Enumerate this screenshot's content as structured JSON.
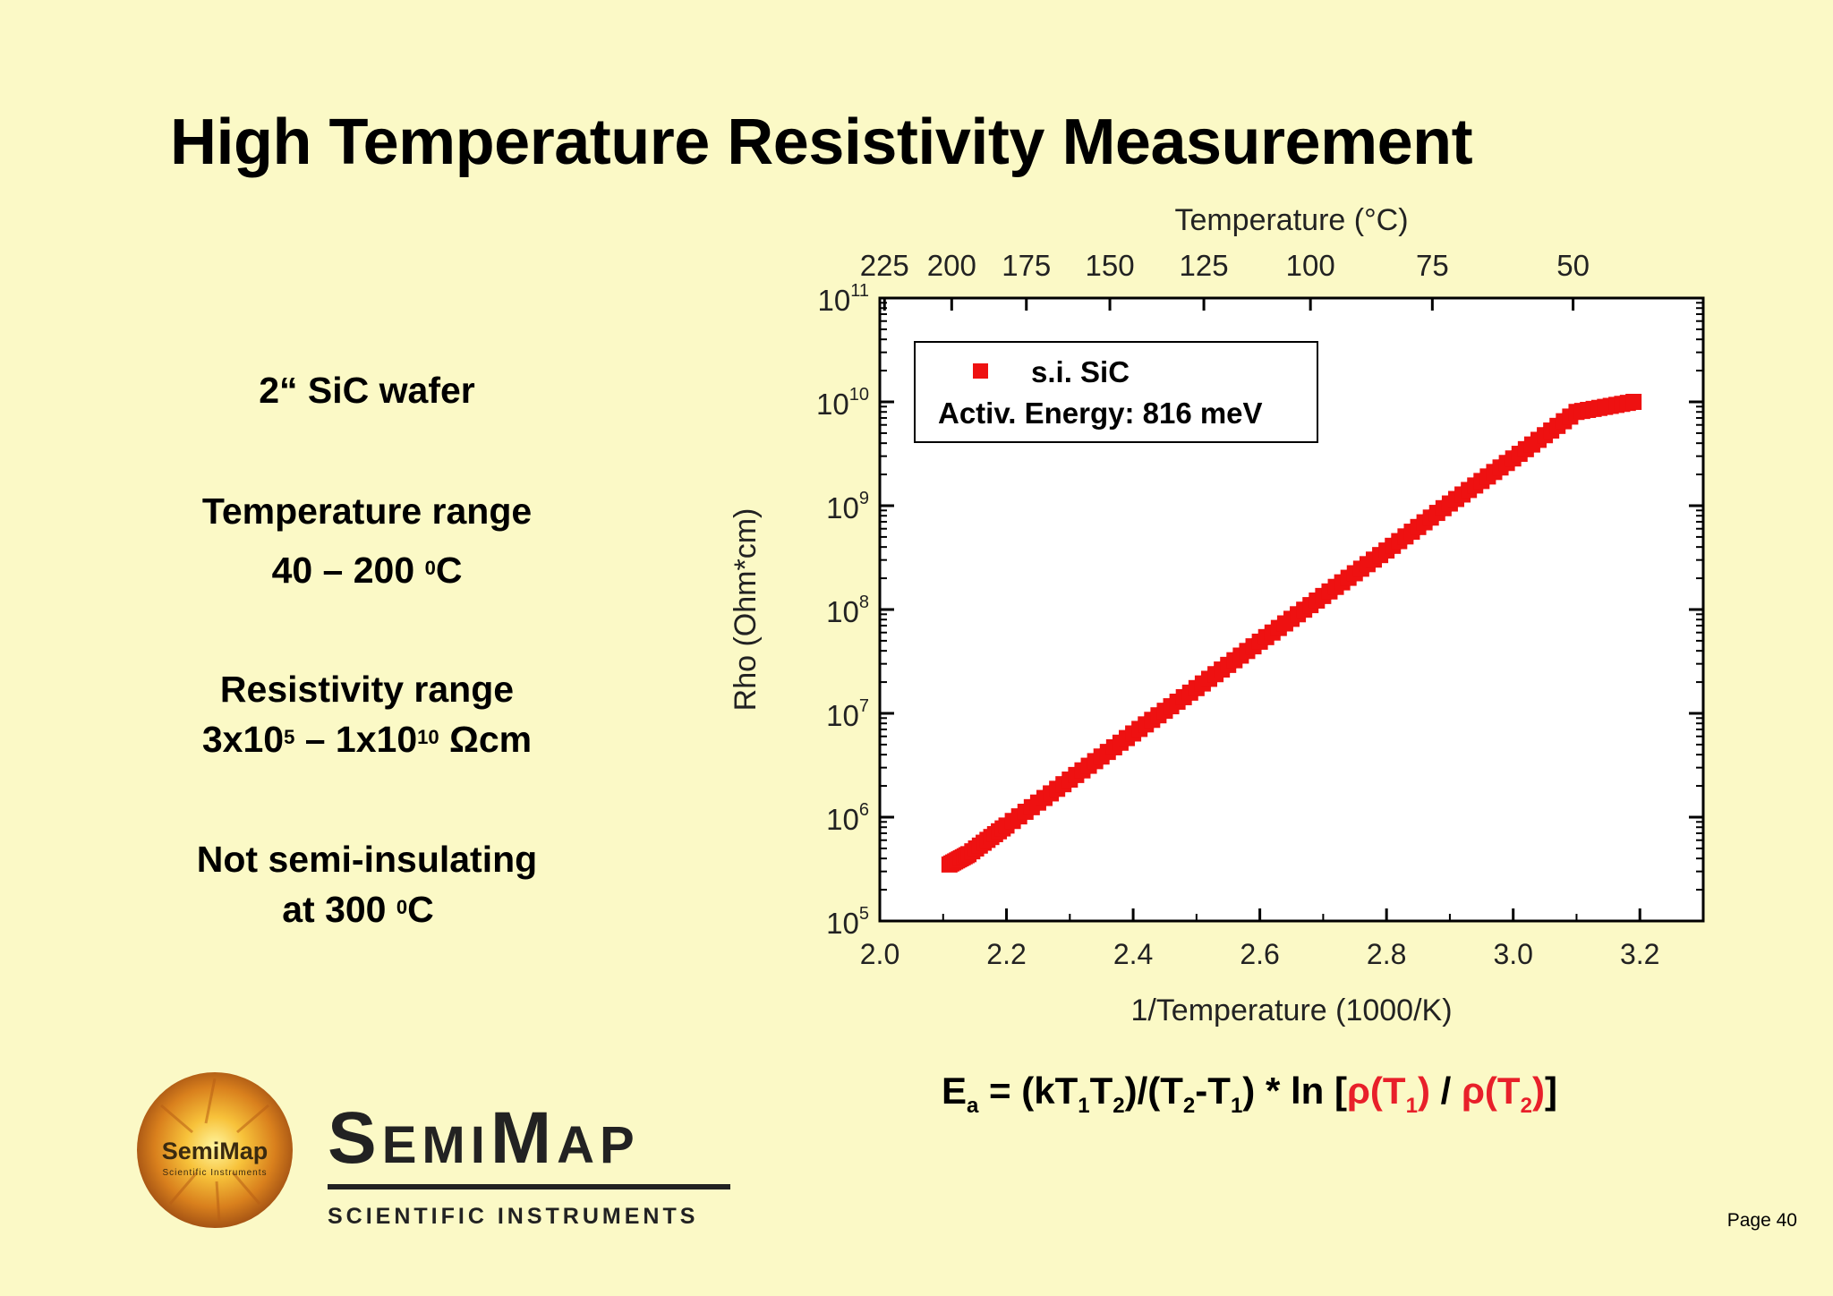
{
  "slide": {
    "title": "High Temperature Resistivity Measurement",
    "page": "Page 40"
  },
  "left": {
    "wafer": "2“ SiC wafer",
    "temp_heading": "Temperature range",
    "temp_range_text": "40 – 200",
    "temp_unit_sup": "0",
    "temp_unit": "C",
    "res_heading": "Resistivity range",
    "res_a": "3x10",
    "res_a_exp": "5",
    "res_dash": " – 1x10",
    "res_b_exp": "10",
    "res_unit": " Ωcm",
    "not_si_1": "Not semi-insulating",
    "not_si_2_text": "at 300 ",
    "not_si_2_sup": "0",
    "not_si_2_unit": "C"
  },
  "formula": {
    "ea": "E",
    "ea_sub": "a",
    "eq": " = (kT",
    "t1": "1",
    "t2_lead": "T",
    "t2": "2",
    "mid1": ")/(T",
    "mid2": "-T",
    "mid3": ") * ln [",
    "rho1": "ρ(T",
    "rho1_sub": "1",
    "rho1_close": ")",
    "slash": " / ",
    "rho2": "ρ(T",
    "rho2_sub": "2",
    "rho2_close": ")",
    "end": "]"
  },
  "logo": {
    "badge_name": "SemiMap",
    "badge_sub": "Scientific Instruments",
    "brand_s": "S",
    "brand_emi": "EMI",
    "brand_m": "M",
    "brand_ap": "AP",
    "brand_sub": "SCIENTIFIC INSTRUMENTS"
  },
  "chart_data": {
    "type": "scatter",
    "xlabel": "1/Temperature (1000/K)",
    "ylabel": "Rho (Ohm*cm)",
    "top_axis_label": "Temperature (°C)",
    "xlim": [
      2.0,
      3.3
    ],
    "ylim_log10": [
      5,
      11
    ],
    "x_ticks": [
      2.0,
      2.2,
      2.4,
      2.6,
      2.8,
      3.0,
      3.2
    ],
    "x_tick_labels": [
      "2.0",
      "2.2",
      "2.4",
      "2.6",
      "2.8",
      "3.0",
      "3.2"
    ],
    "y_tick_exponents": [
      5,
      6,
      7,
      8,
      9,
      10,
      11
    ],
    "y_tick_base": "10",
    "top_ticks_celsius": [
      225,
      200,
      175,
      150,
      125,
      100,
      75,
      50
    ],
    "top_tick_labels": [
      "225",
      "200",
      "175",
      "150",
      "125",
      "100",
      "75",
      "50"
    ],
    "legend": {
      "marker_color": "#ee1111",
      "label": "s.i. SiC",
      "note": "Activ. Energy: 816 meV",
      "placement": "top-left"
    },
    "series": [
      {
        "name": "s.i. SiC",
        "color": "#ee1111",
        "x": [
          2.11,
          2.14,
          2.2,
          2.3,
          2.4,
          2.5,
          2.6,
          2.7,
          2.8,
          2.9,
          3.0,
          3.1,
          3.19
        ],
        "rho": [
          350000.0,
          440000.0,
          830000.0,
          2300000.0,
          6400000.0,
          17500000.0,
          49000000.0,
          135000000.0,
          370000000.0,
          1050000000.0,
          2850000000.0,
          8000000000.0,
          10000000000.0
        ]
      }
    ]
  }
}
